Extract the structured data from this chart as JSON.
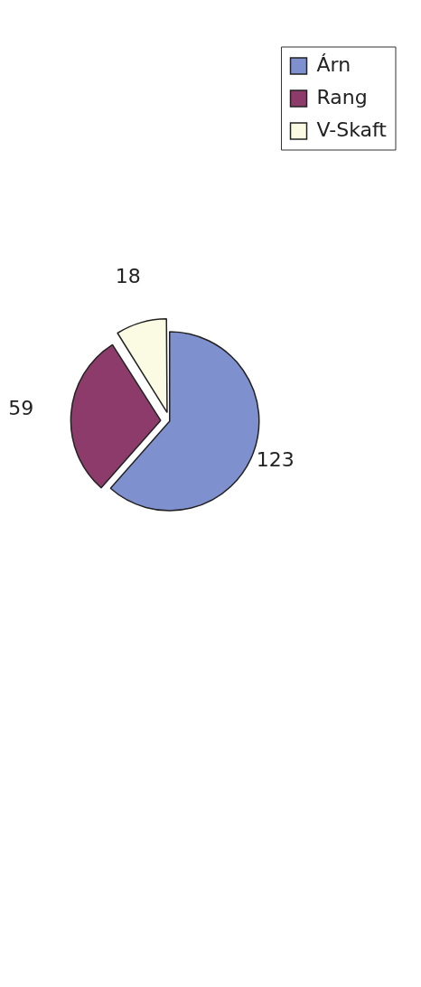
{
  "chart_data": {
    "type": "pie",
    "categories": [
      "Árn",
      "Rang",
      "V-Skaft"
    ],
    "values": [
      123,
      59,
      18
    ],
    "colors": [
      "#7f90cf",
      "#8c3b6b",
      "#fbfbe4"
    ],
    "data_labels": true,
    "legend": "top right"
  }
}
